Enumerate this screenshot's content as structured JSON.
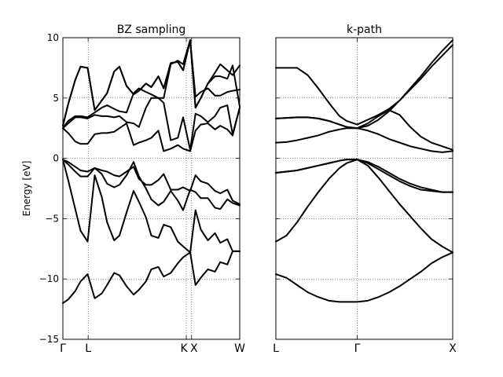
{
  "chart_data": [
    {
      "type": "line",
      "title": "BZ sampling",
      "ylabel": "Energy [eV]",
      "ylim": [
        -15,
        10
      ],
      "xlim": [
        0,
        1
      ],
      "y_ticks": [
        10,
        5,
        0,
        -5,
        -10,
        -15
      ],
      "y_tick_labels": [
        "10",
        "5",
        "0",
        "−5",
        "−10",
        "−15"
      ],
      "x_ticks": [
        {
          "label": "Γ",
          "x": 0.0
        },
        {
          "label": "L",
          "x": 0.143
        },
        {
          "label": "K",
          "x": 0.698
        },
        {
          "label": "X",
          "x": 0.728
        },
        {
          "label": "W",
          "x": 1.0
        }
      ],
      "grid": true,
      "series": [
        {
          "x": [
            0.0,
            0.03,
            0.07,
            0.1,
            0.14,
            0.18,
            0.22,
            0.25,
            0.29,
            0.32,
            0.36,
            0.4,
            0.43,
            0.47,
            0.5,
            0.54,
            0.57,
            0.61,
            0.65,
            0.68,
            0.72,
            0.75,
            0.78,
            0.82,
            0.86,
            0.89,
            0.93,
            0.96,
            1.0
          ],
          "values": [
            -12.0,
            -11.7,
            -11.0,
            -10.2,
            -9.6,
            -11.6,
            -11.2,
            -10.5,
            -9.5,
            -9.7,
            -10.6,
            -11.3,
            -10.9,
            -10.2,
            -9.2,
            -9.0,
            -9.8,
            -9.5,
            -8.7,
            -8.2,
            -7.8,
            -10.5,
            -9.9,
            -9.2,
            -9.4,
            -8.6,
            -8.8,
            -7.7,
            -7.7
          ]
        },
        {
          "x": [
            0.0,
            0.03,
            0.07,
            0.1,
            0.14,
            0.18,
            0.22,
            0.25,
            0.29,
            0.32,
            0.36,
            0.4,
            0.43,
            0.47,
            0.5,
            0.54,
            0.57,
            0.61,
            0.65,
            0.68,
            0.72,
            0.75,
            0.78,
            0.82,
            0.86,
            0.89,
            0.93,
            0.96,
            1.0
          ],
          "values": [
            -0.1,
            -1.8,
            -4.2,
            -6.0,
            -6.9,
            -1.4,
            -3.2,
            -5.3,
            -6.8,
            -6.4,
            -4.5,
            -2.7,
            -3.6,
            -4.9,
            -6.4,
            -6.6,
            -5.5,
            -5.7,
            -6.9,
            -7.3,
            -7.8,
            -4.3,
            -5.9,
            -6.8,
            -6.2,
            -7.0,
            -6.7,
            -7.7,
            -7.7
          ]
        },
        {
          "x": [
            0.0,
            0.03,
            0.07,
            0.1,
            0.14,
            0.18,
            0.22,
            0.25,
            0.29,
            0.32,
            0.36,
            0.4,
            0.43,
            0.47,
            0.5,
            0.54,
            0.57,
            0.61,
            0.65,
            0.68,
            0.72,
            0.75,
            0.78,
            0.82,
            0.86,
            0.89,
            0.93,
            0.96,
            1.0
          ],
          "values": [
            -0.1,
            -0.5,
            -1.1,
            -1.5,
            -1.5,
            -0.8,
            -1.3,
            -2.1,
            -2.4,
            -2.2,
            -1.4,
            -0.3,
            -1.5,
            -2.5,
            -3.4,
            -3.9,
            -3.6,
            -2.7,
            -3.5,
            -4.3,
            -2.6,
            -2.8,
            -3.3,
            -3.3,
            -4.1,
            -4.2,
            -3.4,
            -3.7,
            -3.9
          ]
        },
        {
          "x": [
            0.0,
            0.03,
            0.07,
            0.1,
            0.14,
            0.18,
            0.22,
            0.25,
            0.29,
            0.32,
            0.36,
            0.4,
            0.43,
            0.47,
            0.5,
            0.54,
            0.57,
            0.61,
            0.65,
            0.68,
            0.72,
            0.75,
            0.78,
            0.82,
            0.86,
            0.89,
            0.93,
            0.96,
            1.0
          ],
          "values": [
            -0.1,
            -0.3,
            -0.7,
            -1.0,
            -1.1,
            -0.8,
            -1.0,
            -1.1,
            -1.4,
            -1.5,
            -1.1,
            -0.7,
            -1.7,
            -2.2,
            -2.2,
            -1.8,
            -1.3,
            -2.6,
            -2.6,
            -2.4,
            -2.7,
            -1.4,
            -1.9,
            -2.1,
            -2.7,
            -2.9,
            -2.6,
            -3.5,
            -3.8
          ]
        },
        {
          "x": [
            0.0,
            0.03,
            0.07,
            0.1,
            0.14,
            0.18,
            0.22,
            0.25,
            0.29,
            0.32,
            0.36,
            0.4,
            0.43,
            0.47,
            0.5,
            0.54,
            0.57,
            0.61,
            0.65,
            0.68,
            0.72,
            0.75,
            0.78,
            0.82,
            0.86,
            0.89,
            0.93,
            0.96,
            1.0
          ],
          "values": [
            2.5,
            2.1,
            1.4,
            1.2,
            1.2,
            2.0,
            2.1,
            2.1,
            2.2,
            2.5,
            2.9,
            1.1,
            1.3,
            1.5,
            1.7,
            2.3,
            0.6,
            0.8,
            1.1,
            0.8,
            0.6,
            2.3,
            2.8,
            2.9,
            2.4,
            2.7,
            2.4,
            1.9,
            4.2
          ]
        },
        {
          "x": [
            0.0,
            0.03,
            0.07,
            0.1,
            0.14,
            0.18,
            0.22,
            0.25,
            0.29,
            0.32,
            0.36,
            0.4,
            0.43,
            0.47,
            0.5,
            0.54,
            0.57,
            0.61,
            0.65,
            0.68,
            0.72,
            0.75,
            0.78,
            0.82,
            0.86,
            0.89,
            0.93,
            0.96,
            1.0
          ],
          "values": [
            2.5,
            2.9,
            3.4,
            3.4,
            3.3,
            3.6,
            3.5,
            3.5,
            3.4,
            3.5,
            3.0,
            2.9,
            2.6,
            4.2,
            5.0,
            5.0,
            4.6,
            1.5,
            1.7,
            3.4,
            0.7,
            3.7,
            3.5,
            3.0,
            3.5,
            4.2,
            4.4,
            2.0,
            4.2
          ]
        },
        {
          "x": [
            0.0,
            0.03,
            0.07,
            0.1,
            0.14,
            0.18,
            0.22,
            0.25,
            0.29,
            0.32,
            0.36,
            0.4,
            0.43,
            0.47,
            0.5,
            0.54,
            0.57,
            0.61,
            0.65,
            0.68,
            0.72,
            0.75,
            0.78,
            0.82,
            0.86,
            0.89,
            0.93,
            0.96,
            1.0
          ],
          "values": [
            2.5,
            3.1,
            3.5,
            3.5,
            3.4,
            3.8,
            4.2,
            4.4,
            4.1,
            3.9,
            3.8,
            5.4,
            5.8,
            5.5,
            5.3,
            5.0,
            5.0,
            7.8,
            8.1,
            7.8,
            9.8,
            5.1,
            5.5,
            5.8,
            5.2,
            5.2,
            5.5,
            5.6,
            5.7
          ]
        },
        {
          "x": [
            0.0,
            0.03,
            0.07,
            0.1,
            0.14,
            0.18,
            0.22,
            0.25,
            0.29,
            0.32,
            0.36,
            0.4,
            0.43,
            0.47,
            0.5,
            0.54,
            0.57,
            0.61,
            0.65,
            0.68,
            0.72,
            0.75,
            0.78,
            0.82,
            0.86,
            0.89,
            0.93,
            0.96,
            1.0
          ],
          "values": [
            2.7,
            4.5,
            6.5,
            7.6,
            7.5,
            4.0,
            4.8,
            5.4,
            7.2,
            7.6,
            6.0,
            5.3,
            5.6,
            6.2,
            5.9,
            6.8,
            5.8,
            7.9,
            8.0,
            7.3,
            9.8,
            4.2,
            5.0,
            6.2,
            6.8,
            6.8,
            6.6,
            7.7,
            4.3
          ]
        },
        {
          "x": [
            0.0,
            0.03,
            0.07,
            0.1,
            0.14,
            0.18,
            0.22,
            0.25,
            0.29,
            0.32,
            0.36,
            0.4,
            0.43,
            0.47,
            0.5,
            0.54,
            0.57,
            0.61,
            0.65,
            0.68,
            0.72,
            0.75,
            0.78,
            0.82,
            0.86,
            0.89,
            0.93,
            0.96,
            1.0
          ],
          "values": [
            2.7,
            4.5,
            6.5,
            7.6,
            7.5,
            4.0,
            4.8,
            5.4,
            7.2,
            7.6,
            6.0,
            5.3,
            5.6,
            6.2,
            5.9,
            6.8,
            5.8,
            7.9,
            8.0,
            7.3,
            9.8,
            4.2,
            5.0,
            6.2,
            7.1,
            7.8,
            7.3,
            6.9,
            7.7
          ]
        }
      ]
    },
    {
      "type": "line",
      "title": "k-path",
      "ylim": [
        -15,
        10
      ],
      "xlim": [
        0,
        1
      ],
      "x_ticks": [
        {
          "label": "L",
          "x": 0.0
        },
        {
          "label": "Γ",
          "x": 0.46
        },
        {
          "label": "X",
          "x": 1.0
        }
      ],
      "grid": true,
      "series": [
        {
          "x": [
            0.0,
            0.06,
            0.12,
            0.18,
            0.24,
            0.3,
            0.36,
            0.4,
            0.46,
            0.52,
            0.58,
            0.64,
            0.7,
            0.76,
            0.82,
            0.88,
            0.94,
            1.0
          ],
          "values": [
            -9.6,
            -9.9,
            -10.5,
            -11.1,
            -11.5,
            -11.8,
            -11.9,
            -11.9,
            -11.9,
            -11.8,
            -11.5,
            -11.1,
            -10.6,
            -10.0,
            -9.4,
            -8.7,
            -8.2,
            -7.8
          ]
        },
        {
          "x": [
            0.0,
            0.06,
            0.12,
            0.18,
            0.24,
            0.3,
            0.36,
            0.4,
            0.46,
            0.52,
            0.58,
            0.64,
            0.7,
            0.76,
            0.82,
            0.88,
            0.94,
            1.0
          ],
          "values": [
            -6.9,
            -6.4,
            -5.3,
            -4.0,
            -2.8,
            -1.7,
            -0.8,
            -0.4,
            -0.1,
            -0.6,
            -1.6,
            -2.7,
            -3.8,
            -4.8,
            -5.8,
            -6.7,
            -7.3,
            -7.8
          ]
        },
        {
          "x": [
            0.0,
            0.06,
            0.12,
            0.18,
            0.24,
            0.3,
            0.36,
            0.4,
            0.46,
            0.52,
            0.58,
            0.64,
            0.7,
            0.76,
            0.82,
            0.88,
            0.94,
            1.0
          ],
          "values": [
            -1.2,
            -1.1,
            -1.0,
            -0.8,
            -0.6,
            -0.4,
            -0.2,
            -0.1,
            -0.1,
            -0.4,
            -0.9,
            -1.4,
            -1.9,
            -2.3,
            -2.6,
            -2.7,
            -2.8,
            -2.8
          ]
        },
        {
          "x": [
            0.0,
            0.06,
            0.12,
            0.18,
            0.24,
            0.3,
            0.36,
            0.4,
            0.46,
            0.52,
            0.58,
            0.64,
            0.7,
            0.76,
            0.82,
            0.88,
            0.94,
            1.0
          ],
          "values": [
            -1.2,
            -1.1,
            -1.0,
            -0.8,
            -0.6,
            -0.4,
            -0.2,
            -0.1,
            -0.1,
            -0.3,
            -0.7,
            -1.2,
            -1.7,
            -2.1,
            -2.4,
            -2.6,
            -2.8,
            -2.8
          ]
        },
        {
          "x": [
            0.0,
            0.06,
            0.12,
            0.18,
            0.24,
            0.3,
            0.36,
            0.4,
            0.46,
            0.52,
            0.58,
            0.64,
            0.7,
            0.76,
            0.82,
            0.88,
            0.94,
            1.0
          ],
          "values": [
            1.3,
            1.35,
            1.5,
            1.7,
            1.9,
            2.2,
            2.4,
            2.5,
            2.5,
            2.3,
            2.0,
            1.6,
            1.3,
            1.0,
            0.8,
            0.6,
            0.5,
            0.6
          ]
        },
        {
          "x": [
            0.0,
            0.06,
            0.12,
            0.18,
            0.24,
            0.3,
            0.36,
            0.4,
            0.46,
            0.52,
            0.58,
            0.64,
            0.7,
            0.76,
            0.82,
            0.88,
            0.94,
            1.0
          ],
          "values": [
            3.3,
            3.35,
            3.4,
            3.4,
            3.3,
            3.1,
            2.8,
            2.6,
            2.5,
            2.9,
            3.5,
            4.0,
            3.6,
            2.6,
            1.8,
            1.3,
            1.0,
            0.7
          ]
        },
        {
          "x": [
            0.0,
            0.06,
            0.12,
            0.18,
            0.24,
            0.3,
            0.36,
            0.4,
            0.46,
            0.52,
            0.58,
            0.64,
            0.7,
            0.76,
            0.82,
            0.88,
            0.94,
            1.0
          ],
          "values": [
            3.3,
            3.35,
            3.4,
            3.4,
            3.3,
            3.1,
            2.8,
            2.6,
            2.5,
            2.7,
            3.2,
            3.9,
            4.8,
            5.7,
            6.6,
            7.6,
            8.5,
            9.4
          ]
        },
        {
          "x": [
            0.0,
            0.06,
            0.12,
            0.18,
            0.24,
            0.3,
            0.36,
            0.4,
            0.46,
            0.52,
            0.58,
            0.64,
            0.7,
            0.76,
            0.82,
            0.88,
            0.94,
            1.0
          ],
          "values": [
            7.5,
            7.5,
            7.5,
            6.9,
            5.8,
            4.6,
            3.5,
            3.1,
            2.8,
            3.2,
            3.6,
            4.1,
            4.8,
            5.8,
            6.8,
            7.9,
            8.9,
            9.8
          ]
        }
      ]
    }
  ]
}
